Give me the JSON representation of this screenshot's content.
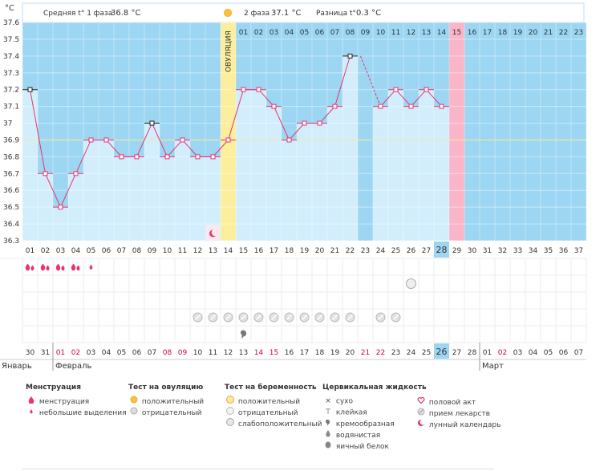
{
  "header": {
    "unit": "°C",
    "phase1_label": "Средняя t° 1 фаза",
    "phase1_value": "36.8 °C",
    "phase2_label": "2 фаза",
    "phase2_value": "37.1 °C",
    "diff_label": "Разница t°",
    "diff_value": "0.3 °C",
    "ovulation_label": "ОВУЛЯЦИЯ"
  },
  "chart_data": {
    "type": "line",
    "title": "",
    "ylabel": "°C",
    "ylim": [
      36.3,
      37.6
    ],
    "y_ticks": [
      "37.6",
      "37.5",
      "37.4",
      "37.3",
      "37.2",
      "37.1",
      "37",
      "36.9",
      "36.8",
      "36.7",
      "36.6",
      "36.5",
      "36.4",
      "36.3"
    ],
    "cycle_days": [
      "01",
      "02",
      "03",
      "04",
      "05",
      "06",
      "07",
      "08",
      "09",
      "10",
      "11",
      "12",
      "13",
      "14",
      "15",
      "16",
      "17",
      "18",
      "19",
      "20",
      "21",
      "22",
      "23",
      "24",
      "25",
      "26",
      "27",
      "28",
      "29",
      "30",
      "31",
      "32",
      "33",
      "34",
      "35",
      "36",
      "37"
    ],
    "temperatures": [
      37.2,
      36.7,
      36.5,
      36.7,
      36.9,
      36.9,
      36.8,
      36.8,
      37.0,
      36.8,
      36.9,
      36.8,
      36.8,
      36.9,
      37.2,
      37.2,
      37.1,
      36.9,
      37.0,
      37.0,
      37.1,
      37.4,
      null,
      37.1,
      37.2,
      37.1,
      37.2,
      37.1
    ],
    "dashed_segment": {
      "from_day": 22,
      "to_day": 24,
      "mid_value": 37.4
    },
    "max_marked_days": [
      1,
      9,
      22
    ],
    "coverline": 36.9,
    "ovulation_day": 14,
    "phase2_day_numbers": [
      "01",
      "02",
      "03",
      "04",
      "05",
      "06",
      "07",
      "08",
      "09",
      "10",
      "11",
      "12",
      "13",
      "14",
      "15",
      "16",
      "17",
      "18",
      "19",
      "20",
      "21",
      "22",
      "23"
    ],
    "expected_period_day": 29,
    "highlighted_day": 28,
    "calendar_dates": [
      "30",
      "31",
      "01",
      "02",
      "03",
      "04",
      "05",
      "06",
      "07",
      "08",
      "09",
      "10",
      "11",
      "12",
      "13",
      "14",
      "15",
      "16",
      "17",
      "18",
      "19",
      "20",
      "21",
      "22",
      "23",
      "24",
      "25",
      "26",
      "27",
      "28",
      "01",
      "02",
      "03",
      "04",
      "05",
      "06",
      "07"
    ],
    "calendar_red_dates_idx": [
      2,
      3,
      9,
      10,
      15,
      16,
      22,
      23,
      31
    ],
    "highlighted_date_idx": 27,
    "months": [
      {
        "name": "Январь",
        "start_idx": 0
      },
      {
        "name": "Февраль",
        "start_idx": 2
      },
      {
        "name": "Март",
        "start_idx": 30
      }
    ],
    "menstruation_days": [
      1,
      2,
      3,
      4
    ],
    "light_discharge_days": [
      5
    ],
    "moon_day": 13,
    "pregnancy_test_faint_days": [
      26
    ],
    "medicine_days": [
      12,
      13,
      14,
      15,
      16,
      17,
      18,
      19,
      20,
      21,
      22,
      24,
      25
    ],
    "creamy_days": [
      15
    ]
  },
  "legend": {
    "menstruation": {
      "title": "Менструация",
      "items": [
        "менструация",
        "небольшие выделения"
      ]
    },
    "ovulation_test": {
      "title": "Тест на овуляцию",
      "items": [
        "положительный",
        "отрицательный"
      ]
    },
    "pregnancy_test": {
      "title": "Тест на беременность",
      "items": [
        "положительный",
        "отрицательный",
        "слабоположительный"
      ]
    },
    "cervical": {
      "title": "Цервикальная жидкость",
      "items": [
        "сухо",
        "клейкая",
        "кремообразная",
        "водянистая",
        "яичный белок"
      ]
    },
    "other": {
      "items": [
        "половой акт",
        "прием лекарств",
        "лунный календарь"
      ]
    }
  },
  "colors": {
    "phase_bg": "#9dd6f2",
    "bar": "#d2eefc",
    "line": "#e8336f",
    "ovulation": "#fbee9d",
    "period": "#f9b6c8",
    "grid": "#eeeeee",
    "red_text": "#d0004f"
  }
}
